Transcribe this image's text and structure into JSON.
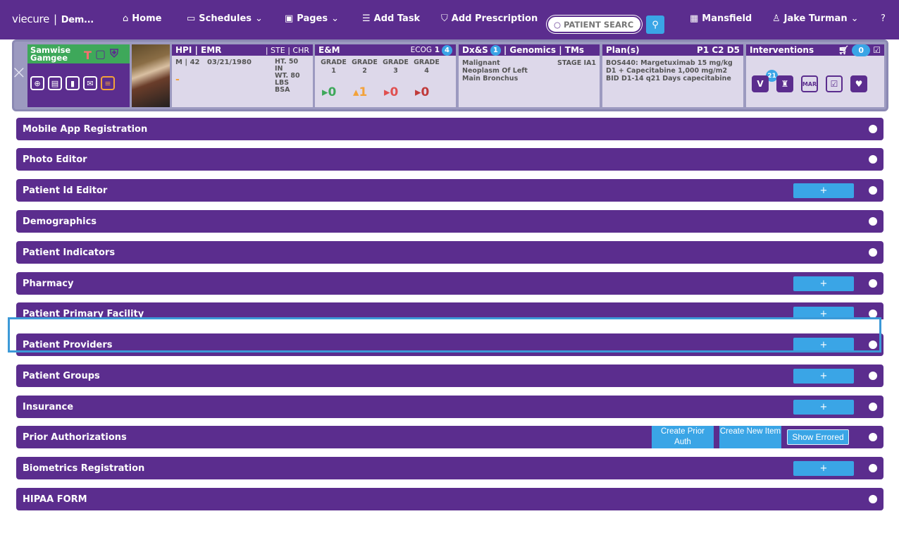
{
  "nav": {
    "brand": "viecure",
    "workspace": "Dem...",
    "home": "Home",
    "schedules": "Schedules",
    "pages": "Pages",
    "add_task": "Add Task",
    "add_prescription": "Add Prescription",
    "search_placeholder": "PATIENT SEARCH",
    "location": "Mansfield",
    "user": "Jake Turman"
  },
  "patient": {
    "first_name": "Samwise",
    "last_name": "Gamgee",
    "hpi_title": "HPI | EMR",
    "hpi_sub": "| STE | CHR",
    "demo": "M | 42",
    "dob": "03/21/1980",
    "ht": "HT. 50",
    "ht_unit": "IN",
    "wt": "WT. 80",
    "wt_unit": "LBS",
    "bsa": "BSA",
    "dash": "-",
    "em_title": "E&M",
    "ecog_label": "ECOG",
    "ecog_value": "1",
    "ecog_badge": "4",
    "grade_label": "GRADE",
    "grades": [
      "1",
      "2",
      "3",
      "4"
    ],
    "grade_counts": [
      "0",
      "1",
      "0",
      "0"
    ],
    "dx_title": "Dx&S",
    "dx_badge": "1",
    "dx_rest": "| Genomics | TMs",
    "diagnosis_line1": "Malignant",
    "diagnosis_line2": "Neoplasm Of Left",
    "diagnosis_line3": "Main Bronchus",
    "stage": "STAGE IA1",
    "plan_title": "Plan(s)",
    "plan_cycle": "P1 C2 D5",
    "plan_text": "BOS440: Margetuximab 15 mg/kg D1 + Capecitabine 1,000 mg/m2 BID D1-14 q21 Days capecitabine",
    "interventions_title": "Interventions",
    "cart_count": "0",
    "v_badge": "21"
  },
  "sections": [
    {
      "label": "Mobile App Registration"
    },
    {
      "label": "Photo Editor"
    },
    {
      "label": "Patient Id Editor",
      "plus": "+"
    },
    {
      "label": "Demographics"
    },
    {
      "label": "Patient Indicators"
    },
    {
      "label": "Pharmacy",
      "plus": "+"
    },
    {
      "label": "Patient Primary Facility",
      "plus": "+"
    },
    {
      "label": "Patient Providers",
      "plus": "+"
    },
    {
      "label": "Patient Groups",
      "plus": "+"
    },
    {
      "label": "Insurance",
      "plus": "+"
    },
    {
      "label": "Prior Authorizations",
      "create_prior": "Create Prior Auth",
      "create_new": "Create New Item",
      "show_errored": "Show Errored"
    },
    {
      "label": "Biometrics Registration",
      "plus": "+"
    },
    {
      "label": "HIPAA FORM"
    }
  ],
  "colors": {
    "primary": "#5b2d8e",
    "accent": "#3aa5e6",
    "banner": "#9c9ac0",
    "green": "#3ea85a"
  }
}
